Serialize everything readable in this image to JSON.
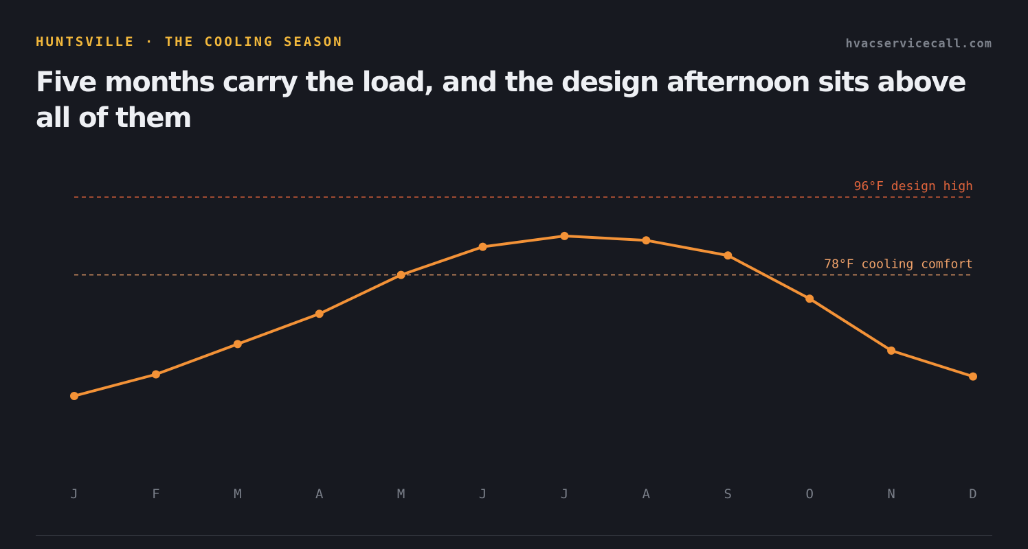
{
  "header": {
    "eyebrow": "HUNTSVILLE · THE COOLING SEASON",
    "site": "hvacservicecall.com",
    "title": "Five months carry the load, and the design afternoon sits above all of them"
  },
  "colors": {
    "background": "#171920",
    "eyebrow": "#f2b83c",
    "line": "#f39237",
    "design_high": "#e0643c",
    "comfort": "#f0a26a"
  },
  "chart_data": {
    "type": "line",
    "title": "",
    "xlabel": "",
    "ylabel": "",
    "categories": [
      "J",
      "F",
      "M",
      "A",
      "M",
      "J",
      "J",
      "A",
      "S",
      "O",
      "N",
      "D"
    ],
    "series": [
      {
        "values": [
          50,
          55,
          62,
          69,
          78,
          84.5,
          87,
          86,
          82.5,
          72.5,
          60.5,
          54.5
        ]
      }
    ],
    "reference_lines": [
      {
        "value": 96,
        "label": "96°F design high"
      },
      {
        "value": 78,
        "label": "78°F cooling comfort"
      }
    ],
    "ylim": [
      40,
      100
    ],
    "grid": false,
    "legend": "none"
  }
}
